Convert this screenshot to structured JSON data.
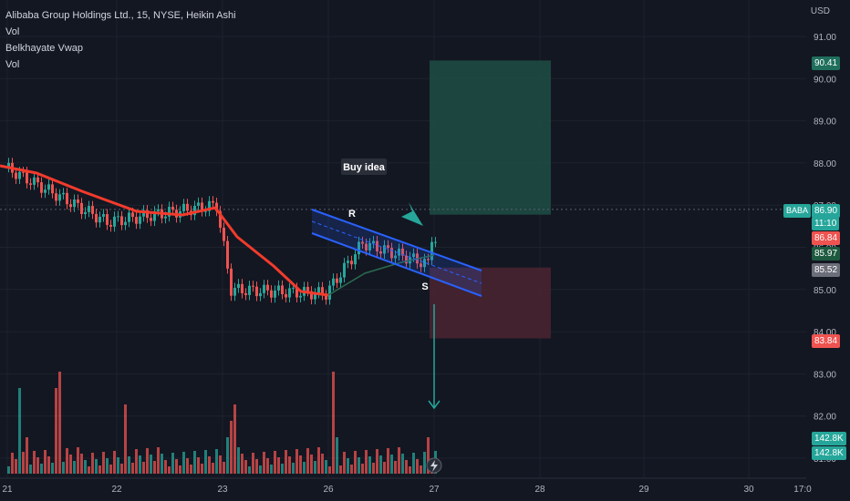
{
  "legend": {
    "title": "Alibaba Group Holdings Ltd., 15, NYSE, Heikin Ashi",
    "line2": "Vol",
    "line3": "Belkhayate Vwap",
    "line4": "Vol"
  },
  "axis": {
    "currency": "USD",
    "y_ticks": [
      "91.00",
      "90.00",
      "89.00",
      "88.00",
      "87.00",
      "86.00",
      "85.00",
      "84.00",
      "83.00",
      "82.00",
      "81.00"
    ],
    "x_ticks": [
      "21",
      "22",
      "23",
      "26",
      "27",
      "28",
      "29",
      "30",
      "17:0"
    ]
  },
  "annotations": {
    "buy_idea": "Buy idea",
    "resistance": "R",
    "support": "S"
  },
  "price_labels": {
    "target": "90.41",
    "symbol": "BABA",
    "last": "86.90",
    "countdown": "11:10",
    "entry": "86.84",
    "vwap": "85.97",
    "level": "85.52",
    "stop": "83.84",
    "vol1": "142.8K",
    "vol2": "142.8K"
  },
  "colors": {
    "up": "#26a69a",
    "down": "#ef5350",
    "vwap_down": "#f23b2c",
    "vwap_up": "#2a6b4f",
    "channel": "#2962ff",
    "target_zone": "#1e4d45",
    "stop_zone": "#4a2530",
    "background": "#131722"
  },
  "chart_data": {
    "type": "candlestick",
    "y_range": [
      80.8,
      91.6
    ],
    "x_days": [
      "21",
      "22",
      "23",
      "26",
      "27",
      "28",
      "29",
      "30"
    ],
    "candles": [
      {
        "day": "21",
        "o": 87.9,
        "h": 88.2,
        "l": 87.7,
        "c": 87.8
      },
      {
        "day": "21",
        "o": 87.8,
        "h": 89.1,
        "l": 87.6,
        "c": 88.1
      },
      {
        "day": "21",
        "o": 88.0,
        "h": 88.3,
        "l": 87.4,
        "c": 87.6
      },
      {
        "day": "21",
        "o": 87.6,
        "h": 87.8,
        "l": 87.0,
        "c": 87.2
      },
      {
        "day": "22",
        "o": 87.2,
        "h": 87.4,
        "l": 86.9,
        "c": 87.0
      },
      {
        "day": "22",
        "o": 87.0,
        "h": 87.3,
        "l": 86.2,
        "c": 86.5
      },
      {
        "day": "22",
        "o": 86.5,
        "h": 87.5,
        "l": 86.4,
        "c": 87.0
      },
      {
        "day": "22",
        "o": 87.0,
        "h": 87.1,
        "l": 86.8,
        "c": 87.0
      },
      {
        "day": "23",
        "o": 87.0,
        "h": 87.1,
        "l": 84.8,
        "c": 85.2
      },
      {
        "day": "23",
        "o": 85.2,
        "h": 85.6,
        "l": 84.5,
        "c": 84.7
      },
      {
        "day": "23",
        "o": 84.7,
        "h": 85.2,
        "l": 84.6,
        "c": 85.0
      },
      {
        "day": "23",
        "o": 85.0,
        "h": 85.1,
        "l": 84.8,
        "c": 84.9
      },
      {
        "day": "26",
        "o": 84.9,
        "h": 86.5,
        "l": 84.9,
        "c": 86.2
      },
      {
        "day": "26",
        "o": 86.2,
        "h": 86.4,
        "l": 85.8,
        "c": 86.0
      },
      {
        "day": "26",
        "o": 86.0,
        "h": 86.2,
        "l": 85.7,
        "c": 85.8
      },
      {
        "day": "26",
        "o": 85.8,
        "h": 86.0,
        "l": 85.4,
        "c": 85.6
      },
      {
        "day": "27",
        "o": 85.6,
        "h": 87.2,
        "l": 85.5,
        "c": 86.9
      }
    ],
    "volume_labels": [
      "142.8K",
      "142.8K"
    ],
    "trade_setup": {
      "target": 90.41,
      "entry": 86.84,
      "stop": 83.84
    }
  }
}
